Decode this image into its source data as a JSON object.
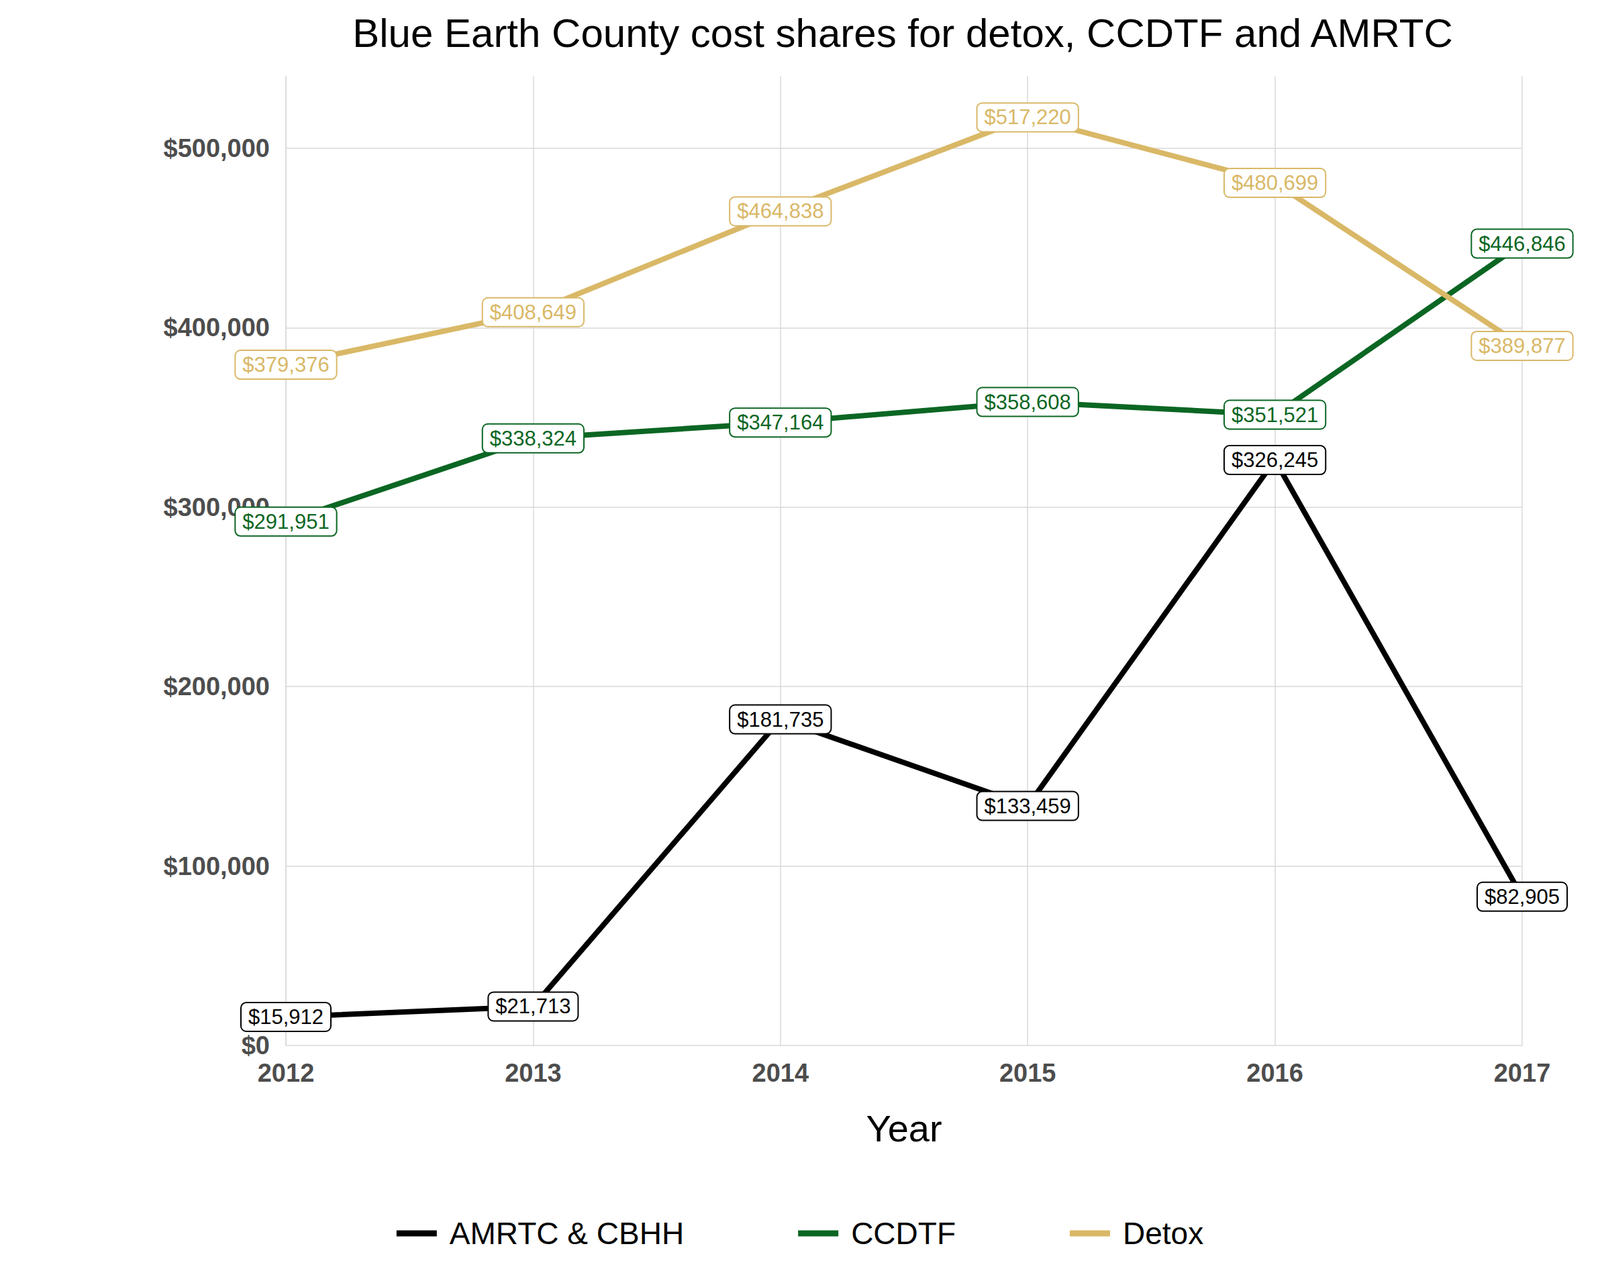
{
  "chart_data": {
    "type": "line",
    "title": "Blue Earth County cost shares for detox, CCDTF and AMRTC",
    "x_label": "Year",
    "categories": [
      "2012",
      "2013",
      "2014",
      "2015",
      "2016",
      "2017"
    ],
    "series": [
      {
        "name": "AMRTC & CBHH",
        "color": "#000000",
        "values": [
          15912,
          21713,
          181735,
          133459,
          326245,
          82905
        ],
        "value_labels": [
          "$15,912",
          "$21,713",
          "$181,735",
          "$133,459",
          "$326,245",
          "$82,905"
        ]
      },
      {
        "name": "CCDTF",
        "color": "#0b6623",
        "values": [
          291951,
          338324,
          347164,
          358608,
          351521,
          446846
        ],
        "value_labels": [
          "$291,951",
          "$338,324",
          "$347,164",
          "$358,608",
          "$351,521",
          "$446,846"
        ]
      },
      {
        "name": "Detox",
        "color": "#d9b867",
        "values": [
          379376,
          408649,
          464838,
          517220,
          480699,
          389877
        ],
        "value_labels": [
          "$379,376",
          "$408,649",
          "$464,838",
          "$517,220",
          "$480,699",
          "$389,877"
        ]
      }
    ],
    "ylim": [
      0,
      540000
    ],
    "yticks": [
      {
        "value": 0,
        "label": "$0"
      },
      {
        "value": 100000,
        "label": "$100,000"
      },
      {
        "value": 200000,
        "label": "$200,000"
      },
      {
        "value": 300000,
        "label": "$300,000"
      },
      {
        "value": 400000,
        "label": "$400,000"
      },
      {
        "value": 500000,
        "label": "$500,000"
      }
    ],
    "grid": true,
    "legend": "bottom",
    "data_labels": true
  }
}
